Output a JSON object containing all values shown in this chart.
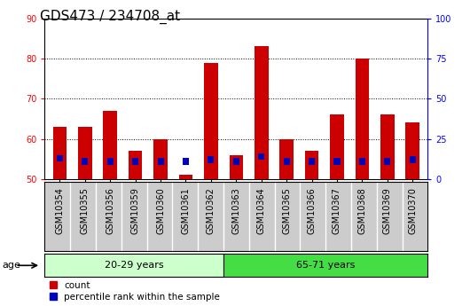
{
  "title": "GDS473 / 234708_at",
  "samples": [
    "GSM10354",
    "GSM10355",
    "GSM10356",
    "GSM10359",
    "GSM10360",
    "GSM10361",
    "GSM10362",
    "GSM10363",
    "GSM10364",
    "GSM10365",
    "GSM10366",
    "GSM10367",
    "GSM10368",
    "GSM10369",
    "GSM10370"
  ],
  "count_values": [
    63,
    63,
    67,
    57,
    60,
    51,
    79,
    56,
    83,
    60,
    57,
    66,
    80,
    66,
    64
  ],
  "percentile_values": [
    13,
    11,
    11,
    11,
    11,
    11,
    12,
    11,
    14,
    11,
    11,
    11,
    11,
    11,
    12
  ],
  "ymin": 50,
  "ymax": 90,
  "y2min": 0,
  "y2max": 100,
  "yticks": [
    50,
    60,
    70,
    80,
    90
  ],
  "y2ticks": [
    0,
    25,
    50,
    75,
    100
  ],
  "group1_label": "20-29 years",
  "group2_label": "65-71 years",
  "group1_count": 7,
  "group2_count": 8,
  "bar_color": "#cc0000",
  "pct_color": "#0000bb",
  "group1_bg": "#ccffcc",
  "group2_bg": "#44dd44",
  "tick_bg": "#cccccc",
  "bar_width": 0.55,
  "title_fontsize": 11,
  "axis_fontsize": 8,
  "tick_fontsize": 7,
  "legend_count": "count",
  "legend_pct": "percentile rank within the sample"
}
